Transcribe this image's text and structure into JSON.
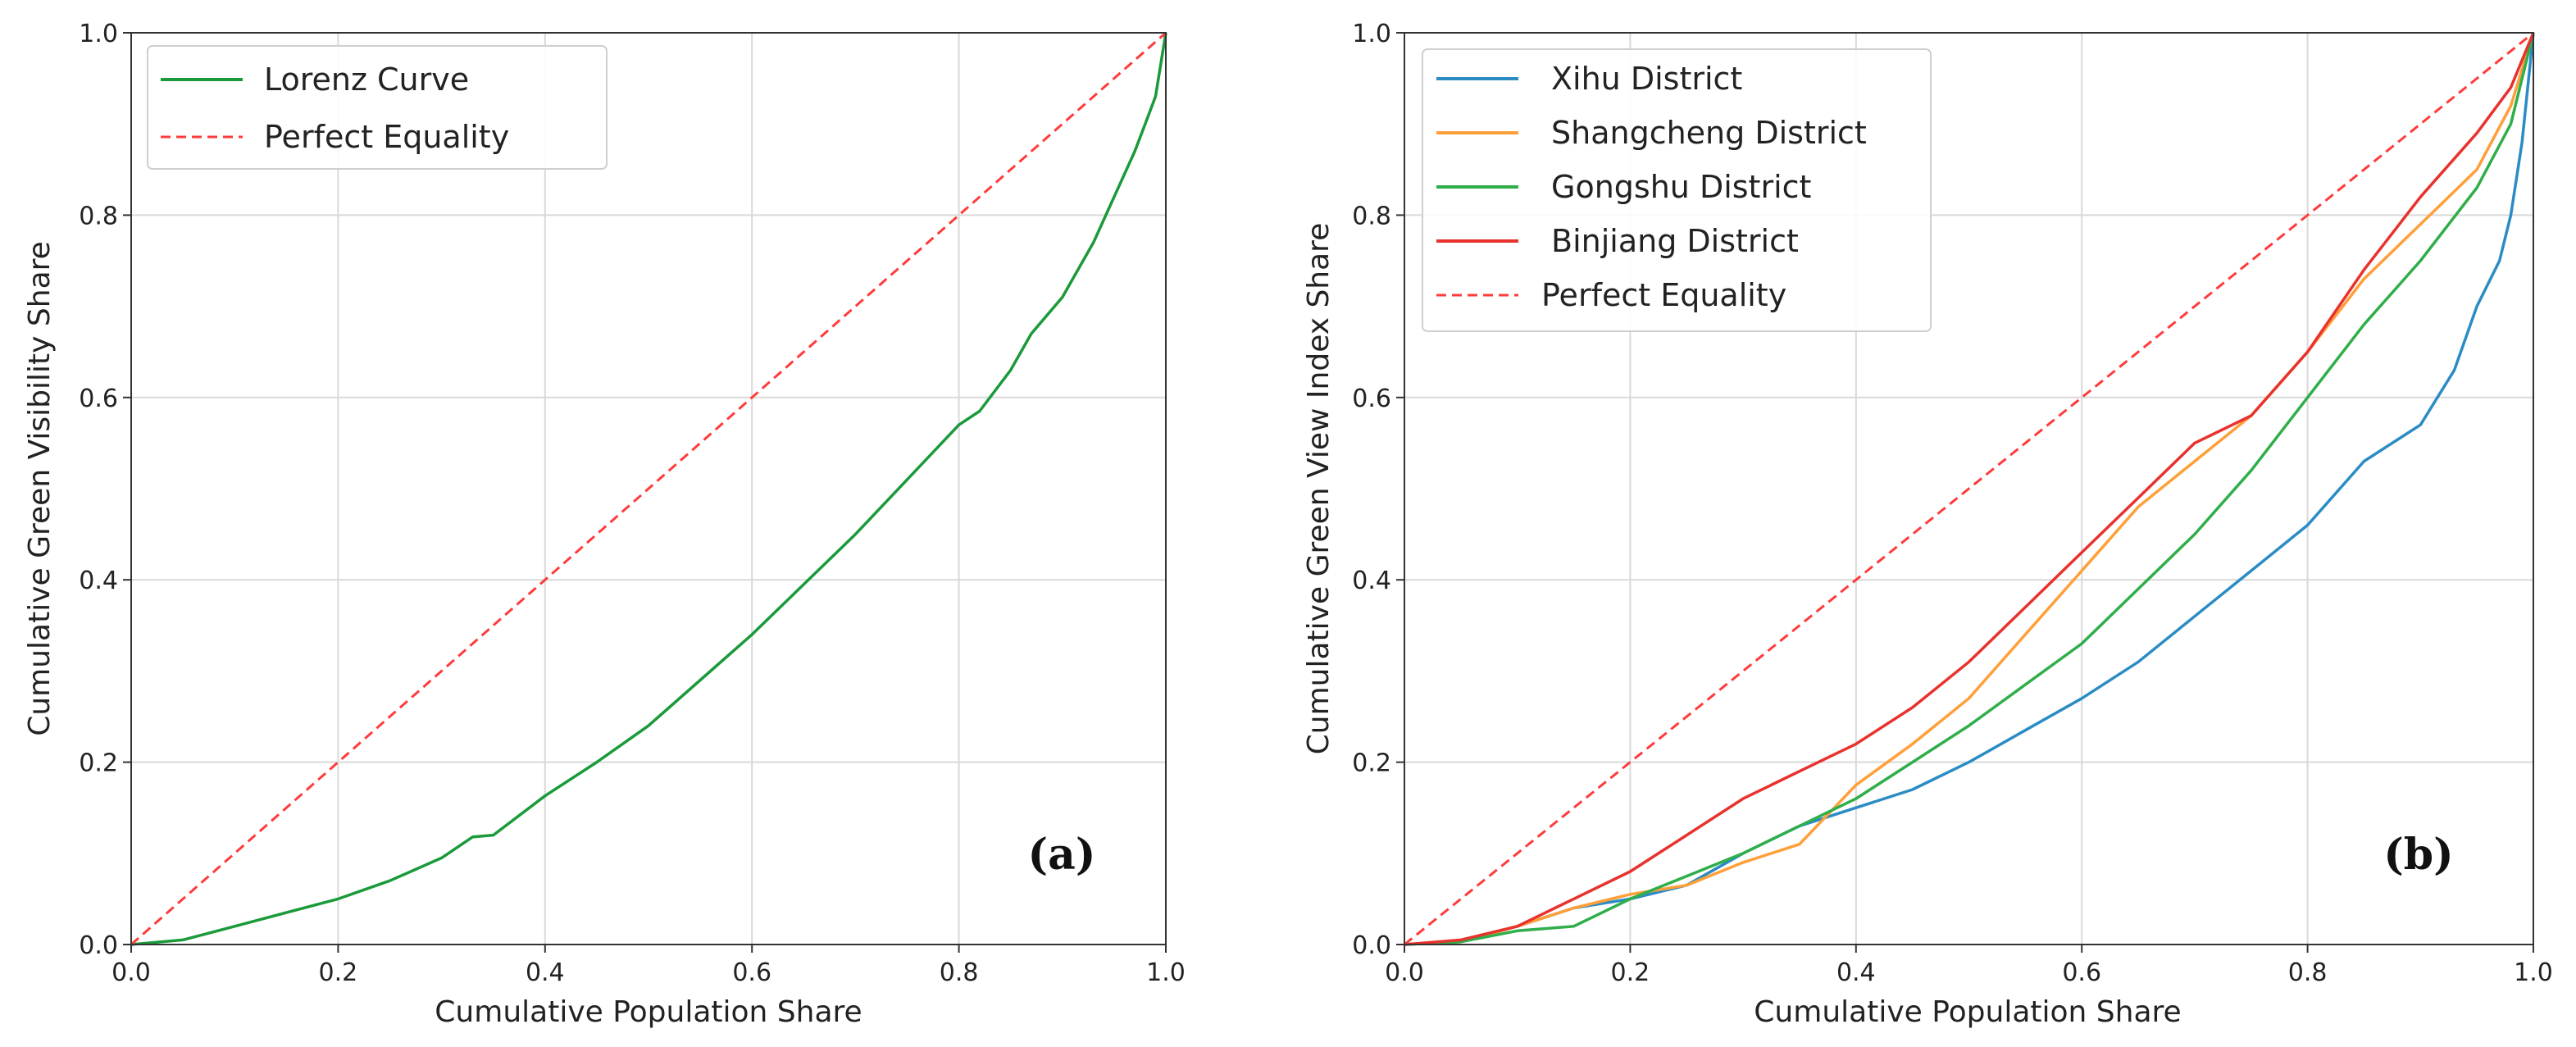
{
  "chart_data": [
    {
      "type": "line",
      "panel_label": "(a)",
      "xlabel": "Cumulative Population Share",
      "ylabel": "Cumulative Green Visibility Share",
      "xlim": [
        0,
        1
      ],
      "ylim": [
        0,
        1
      ],
      "xticks": [
        "0.0",
        "0.2",
        "0.4",
        "0.6",
        "0.8",
        "1.0"
      ],
      "yticks": [
        "0.0",
        "0.2",
        "0.4",
        "0.6",
        "0.8",
        "1.0"
      ],
      "grid": true,
      "legend_position": "top-left",
      "series": [
        {
          "name": "Lorenz Curve",
          "color": "#1a9a3a",
          "style": "solid",
          "x": [
            0,
            0.05,
            0.1,
            0.15,
            0.2,
            0.25,
            0.3,
            0.33,
            0.35,
            0.4,
            0.45,
            0.5,
            0.55,
            0.6,
            0.65,
            0.7,
            0.75,
            0.8,
            0.82,
            0.85,
            0.87,
            0.9,
            0.93,
            0.95,
            0.97,
            0.98,
            0.99,
            1.0
          ],
          "y": [
            0,
            0.005,
            0.02,
            0.035,
            0.05,
            0.07,
            0.095,
            0.118,
            0.12,
            0.163,
            0.2,
            0.24,
            0.29,
            0.34,
            0.395,
            0.45,
            0.51,
            0.57,
            0.585,
            0.63,
            0.67,
            0.71,
            0.77,
            0.82,
            0.87,
            0.9,
            0.93,
            1.0
          ]
        },
        {
          "name": "Perfect Equality",
          "color": "#ff3b3b",
          "style": "dashed",
          "x": [
            0,
            1
          ],
          "y": [
            0,
            1
          ]
        }
      ]
    },
    {
      "type": "line",
      "panel_label": "(b)",
      "xlabel": "Cumulative Population Share",
      "ylabel": "Cumulative Green View Index Share",
      "xlim": [
        0,
        1
      ],
      "ylim": [
        0,
        1
      ],
      "xticks": [
        "0.0",
        "0.2",
        "0.4",
        "0.6",
        "0.8",
        "1.0"
      ],
      "yticks": [
        "0.0",
        "0.2",
        "0.4",
        "0.6",
        "0.8",
        "1.0"
      ],
      "grid": true,
      "legend_position": "top-left",
      "series": [
        {
          "name": "Xihu District",
          "color": "#2b8cc4",
          "style": "solid",
          "x": [
            0,
            0.05,
            0.1,
            0.15,
            0.2,
            0.25,
            0.3,
            0.35,
            0.4,
            0.45,
            0.5,
            0.55,
            0.6,
            0.65,
            0.7,
            0.75,
            0.8,
            0.85,
            0.9,
            0.93,
            0.95,
            0.97,
            0.98,
            0.99,
            1.0
          ],
          "y": [
            0,
            0.003,
            0.02,
            0.04,
            0.05,
            0.065,
            0.1,
            0.13,
            0.15,
            0.17,
            0.2,
            0.235,
            0.27,
            0.31,
            0.36,
            0.41,
            0.46,
            0.53,
            0.57,
            0.63,
            0.7,
            0.75,
            0.8,
            0.88,
            1.0
          ]
        },
        {
          "name": "Shangcheng District",
          "color": "#ff9f3a",
          "style": "solid",
          "x": [
            0,
            0.05,
            0.1,
            0.15,
            0.2,
            0.25,
            0.3,
            0.35,
            0.4,
            0.45,
            0.5,
            0.55,
            0.6,
            0.65,
            0.7,
            0.75,
            0.8,
            0.85,
            0.9,
            0.95,
            0.98,
            1.0
          ],
          "y": [
            0,
            0.003,
            0.02,
            0.04,
            0.055,
            0.065,
            0.09,
            0.11,
            0.175,
            0.22,
            0.27,
            0.34,
            0.41,
            0.48,
            0.53,
            0.58,
            0.65,
            0.73,
            0.79,
            0.85,
            0.92,
            1.0
          ]
        },
        {
          "name": "Gongshu District",
          "color": "#2fae4a",
          "style": "solid",
          "x": [
            0,
            0.05,
            0.1,
            0.15,
            0.2,
            0.25,
            0.3,
            0.35,
            0.4,
            0.45,
            0.5,
            0.55,
            0.6,
            0.65,
            0.7,
            0.75,
            0.8,
            0.85,
            0.9,
            0.95,
            0.98,
            1.0
          ],
          "y": [
            0,
            0.003,
            0.015,
            0.02,
            0.05,
            0.075,
            0.1,
            0.13,
            0.16,
            0.2,
            0.24,
            0.285,
            0.33,
            0.39,
            0.45,
            0.52,
            0.6,
            0.68,
            0.75,
            0.83,
            0.9,
            1.0
          ]
        },
        {
          "name": "Binjiang District",
          "color": "#e8322e",
          "style": "solid",
          "x": [
            0,
            0.05,
            0.1,
            0.15,
            0.2,
            0.25,
            0.3,
            0.35,
            0.4,
            0.45,
            0.5,
            0.55,
            0.6,
            0.65,
            0.7,
            0.75,
            0.8,
            0.85,
            0.9,
            0.95,
            0.98,
            1.0
          ],
          "y": [
            0,
            0.005,
            0.02,
            0.05,
            0.08,
            0.12,
            0.16,
            0.19,
            0.22,
            0.26,
            0.31,
            0.37,
            0.43,
            0.49,
            0.55,
            0.58,
            0.65,
            0.74,
            0.82,
            0.89,
            0.94,
            1.0
          ]
        },
        {
          "name": "Perfect Equality",
          "color": "#ff3b3b",
          "style": "dashed",
          "x": [
            0,
            1
          ],
          "y": [
            0,
            1
          ]
        }
      ]
    }
  ]
}
